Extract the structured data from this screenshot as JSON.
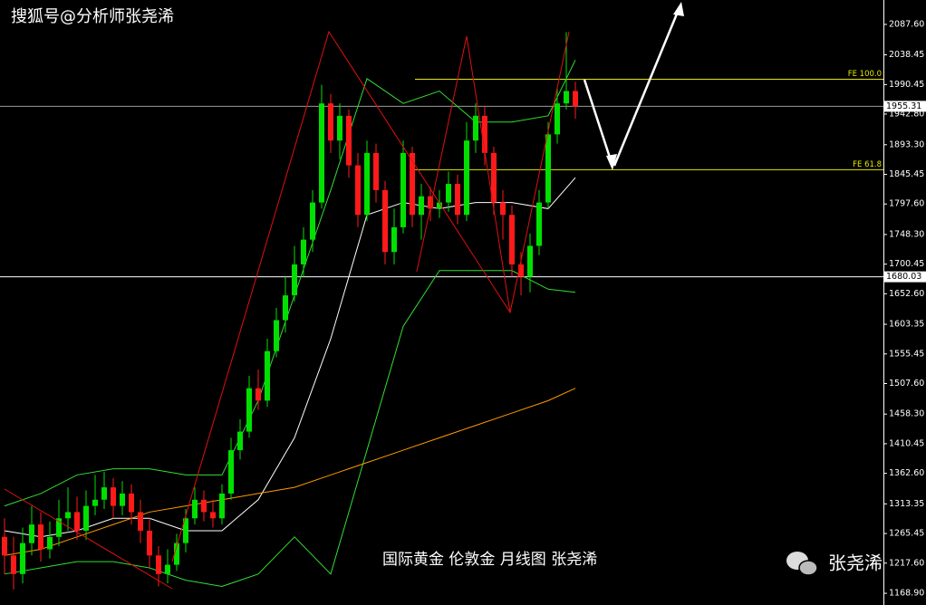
{
  "chart_data": {
    "type": "candlestick",
    "watermark": "搜狐号@分析师张尧浠",
    "caption": "国际黄金 伦敦金 月线图 张尧浠",
    "signature": "张尧浠",
    "ylim": [
      1150,
      2127
    ],
    "yticks": [
      {
        "value": 2087.6,
        "label": "2087.60"
      },
      {
        "value": 2038.45,
        "label": "2038.45"
      },
      {
        "value": 1990.45,
        "label": "1990.45"
      },
      {
        "value": 1942.8,
        "label": "1942.80"
      },
      {
        "value": 1893.3,
        "label": "1893.30"
      },
      {
        "value": 1845.45,
        "label": "1845.45"
      },
      {
        "value": 1797.6,
        "label": "1797.60"
      },
      {
        "value": 1748.3,
        "label": "1748.30"
      },
      {
        "value": 1700.45,
        "label": "1700.45"
      },
      {
        "value": 1652.6,
        "label": "1652.60"
      },
      {
        "value": 1603.35,
        "label": "1603.35"
      },
      {
        "value": 1555.45,
        "label": "1555.45"
      },
      {
        "value": 1507.6,
        "label": "1507.60"
      },
      {
        "value": 1458.3,
        "label": "1458.30"
      },
      {
        "value": 1410.45,
        "label": "1410.45"
      },
      {
        "value": 1362.6,
        "label": "1362.60"
      },
      {
        "value": 1313.35,
        "label": "1313.35"
      },
      {
        "value": 1265.45,
        "label": "1265.45"
      },
      {
        "value": 1217.6,
        "label": "1217.60"
      },
      {
        "value": 1168.9,
        "label": "1168.90"
      }
    ],
    "up_color": "#00e000",
    "down_color": "#ff1a1a",
    "candles": {
      "open": [
        1260,
        1230,
        1200,
        1250,
        1280,
        1240,
        1260,
        1290,
        1300,
        1270,
        1310,
        1320,
        1340,
        1310,
        1330,
        1300,
        1270,
        1230,
        1200,
        1215,
        1250,
        1290,
        1320,
        1300,
        1290,
        1330,
        1400,
        1430,
        1500,
        1480,
        1560,
        1610,
        1650,
        1700,
        1740,
        1800,
        1960,
        1900,
        1940,
        1860,
        1780,
        1880,
        1820,
        1720,
        1760,
        1880,
        1780,
        1810,
        1790,
        1800,
        1830,
        1780,
        1900,
        1940,
        1880,
        1800,
        1780,
        1700,
        1680,
        1730,
        1800,
        1910,
        1960,
        1980
      ],
      "high": [
        1290,
        1260,
        1275,
        1310,
        1300,
        1285,
        1320,
        1340,
        1325,
        1335,
        1360,
        1365,
        1355,
        1350,
        1345,
        1320,
        1290,
        1245,
        1240,
        1265,
        1305,
        1340,
        1335,
        1320,
        1345,
        1420,
        1450,
        1520,
        1530,
        1580,
        1630,
        1680,
        1730,
        1760,
        1820,
        1990,
        1975,
        1960,
        1950,
        1880,
        1900,
        1895,
        1835,
        1790,
        1900,
        1890,
        1830,
        1825,
        1820,
        1850,
        1845,
        1930,
        1960,
        1955,
        1890,
        1820,
        1795,
        1720,
        1750,
        1820,
        1930,
        1985,
        2075,
        1995
      ],
      "low": [
        1200,
        1175,
        1185,
        1230,
        1220,
        1225,
        1245,
        1270,
        1255,
        1255,
        1295,
        1305,
        1290,
        1295,
        1280,
        1250,
        1210,
        1180,
        1185,
        1205,
        1235,
        1280,
        1285,
        1275,
        1280,
        1320,
        1385,
        1420,
        1465,
        1470,
        1550,
        1590,
        1640,
        1680,
        1720,
        1790,
        1880,
        1870,
        1840,
        1760,
        1770,
        1800,
        1700,
        1700,
        1750,
        1760,
        1740,
        1770,
        1775,
        1785,
        1765,
        1770,
        1880,
        1860,
        1780,
        1740,
        1680,
        1650,
        1655,
        1715,
        1790,
        1895,
        1950,
        1935
      ],
      "close": [
        1230,
        1200,
        1250,
        1280,
        1240,
        1260,
        1290,
        1300,
        1270,
        1310,
        1320,
        1340,
        1310,
        1330,
        1300,
        1270,
        1230,
        1200,
        1215,
        1250,
        1290,
        1320,
        1300,
        1290,
        1330,
        1400,
        1430,
        1500,
        1480,
        1560,
        1610,
        1650,
        1700,
        1740,
        1800,
        1960,
        1900,
        1940,
        1860,
        1780,
        1880,
        1820,
        1720,
        1760,
        1880,
        1780,
        1810,
        1790,
        1800,
        1830,
        1780,
        1900,
        1940,
        1880,
        1800,
        1780,
        1700,
        1680,
        1730,
        1800,
        1910,
        1960,
        1980,
        1955
      ]
    },
    "line_index": [
      0,
      4,
      8,
      12,
      16,
      20,
      24,
      28,
      32,
      36,
      40,
      44,
      48,
      52,
      56,
      60,
      63
    ],
    "lines": [
      {
        "color": "#ffffff",
        "values": [
          1270,
          1260,
          1270,
          1290,
          1290,
          1270,
          1270,
          1320,
          1420,
          1580,
          1780,
          1800,
          1790,
          1800,
          1800,
          1790,
          1840
        ]
      },
      {
        "color": "#33dd33",
        "values": [
          1310,
          1330,
          1360,
          1370,
          1370,
          1360,
          1360,
          1480,
          1650,
          1820,
          2000,
          1960,
          1980,
          1930,
          1930,
          1940,
          2030
        ]
      },
      {
        "color": "#33dd33",
        "values": [
          1200,
          1210,
          1220,
          1220,
          1210,
          1190,
          1180,
          1200,
          1260,
          1200,
          1400,
          1600,
          1690,
          1690,
          1690,
          1660,
          1655
        ]
      },
      {
        "color": "#ff9900",
        "values": [
          1230,
          1240,
          1260,
          1280,
          1300,
          1310,
          1320,
          1330,
          1340,
          1360,
          1380,
          1400,
          1420,
          1440,
          1460,
          1480,
          1500
        ]
      }
    ],
    "levels": [
      {
        "value": 1999,
        "label": "FE 100.0",
        "color": "#e6e600"
      },
      {
        "value": 1853,
        "label": "FE 61.8",
        "color": "#e6e600"
      }
    ],
    "price_marks": [
      {
        "value": 1955.31,
        "color": "#9a9a9a"
      },
      {
        "value": 1680.03,
        "color": "#ffffff"
      }
    ]
  }
}
